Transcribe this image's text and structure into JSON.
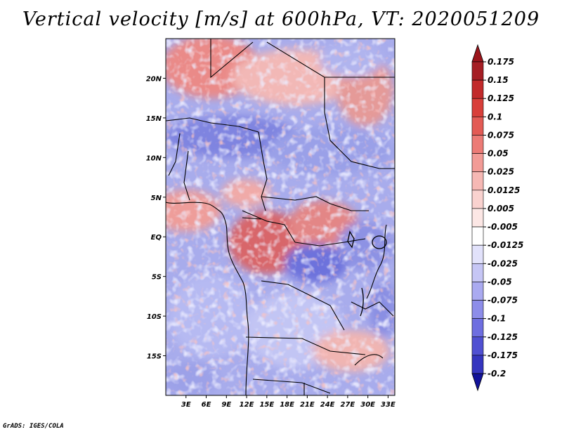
{
  "title": "Vertical velocity [m/s] at 600hPa, VT: 2020051209",
  "credit": "GrADS: IGES/COLA",
  "map": {
    "lon_range": [
      0,
      34
    ],
    "lat_range": [
      -20,
      25
    ],
    "lat_ticks": [
      {
        "value": 20,
        "label": "20N"
      },
      {
        "value": 15,
        "label": "15N"
      },
      {
        "value": 10,
        "label": "10N"
      },
      {
        "value": 5,
        "label": "5N"
      },
      {
        "value": 0,
        "label": "EQ"
      },
      {
        "value": -5,
        "label": "5S"
      },
      {
        "value": -10,
        "label": "10S"
      },
      {
        "value": -15,
        "label": "15S"
      }
    ],
    "lon_ticks": [
      {
        "value": 3,
        "label": "3E"
      },
      {
        "value": 6,
        "label": "6E"
      },
      {
        "value": 9,
        "label": "9E"
      },
      {
        "value": 12,
        "label": "12E"
      },
      {
        "value": 15,
        "label": "15E"
      },
      {
        "value": 18,
        "label": "18E"
      },
      {
        "value": 21,
        "label": "21E"
      },
      {
        "value": 24,
        "label": "24E"
      },
      {
        "value": 27,
        "label": "27E"
      },
      {
        "value": 30,
        "label": "30E"
      },
      {
        "value": 33,
        "label": "33E"
      }
    ]
  },
  "colorbar": {
    "levels": [
      {
        "label": "0.175",
        "color": "#a51e24"
      },
      {
        "label": "0.15",
        "color": "#c22a2b"
      },
      {
        "label": "0.125",
        "color": "#d83f3a"
      },
      {
        "label": "0.1",
        "color": "#e35b55"
      },
      {
        "label": "0.075",
        "color": "#ec7b76"
      },
      {
        "label": "0.05",
        "color": "#f29b96"
      },
      {
        "label": "0.025",
        "color": "#f6b8b4"
      },
      {
        "label": "0.0125",
        "color": "#f9d2cf"
      },
      {
        "label": "0.005",
        "color": "#fce7e5"
      },
      {
        "label": "-0.005",
        "color": "#ffffff"
      },
      {
        "label": "-0.0125",
        "color": "#e2e2fb"
      },
      {
        "label": "-0.025",
        "color": "#c6c6f5"
      },
      {
        "label": "-0.05",
        "color": "#aaaaf0"
      },
      {
        "label": "-0.075",
        "color": "#8d8de9"
      },
      {
        "label": "-0.1",
        "color": "#6e6ee0"
      },
      {
        "label": "-0.125",
        "color": "#5050d2"
      },
      {
        "label": "-0.175",
        "color": "#3535bf"
      },
      {
        "label": "-0.2",
        "color": "#2020a8"
      }
    ],
    "top_color": "#9b141b",
    "bottom_color": "#12129a"
  }
}
